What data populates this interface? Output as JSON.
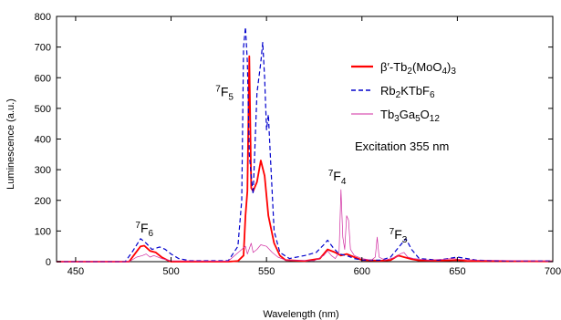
{
  "chart_data": {
    "type": "line",
    "title": "",
    "xlabel": "Wavelength (nm)",
    "ylabel": "Luminescence (a.u.)",
    "xlim": [
      440,
      700
    ],
    "ylim": [
      0,
      800
    ],
    "xticks": [
      450,
      500,
      550,
      600,
      650,
      700
    ],
    "yticks": [
      0,
      100,
      200,
      300,
      400,
      500,
      600,
      700,
      800
    ],
    "grid": false,
    "legend_placement": "top-right",
    "series": [
      {
        "name": "β′-Tb2(MoO4)3",
        "color": "#ff0000",
        "style": "solid",
        "points": [
          [
            440,
            0
          ],
          [
            478,
            0
          ],
          [
            481,
            25
          ],
          [
            484,
            50
          ],
          [
            486,
            52
          ],
          [
            489,
            35
          ],
          [
            492,
            30
          ],
          [
            495,
            15
          ],
          [
            498,
            5
          ],
          [
            500,
            0
          ],
          [
            530,
            0
          ],
          [
            535,
            2
          ],
          [
            538,
            20
          ],
          [
            539,
            150
          ],
          [
            540,
            230
          ],
          [
            541,
            670
          ],
          [
            542,
            240
          ],
          [
            543,
            230
          ],
          [
            545,
            260
          ],
          [
            547,
            330
          ],
          [
            549,
            280
          ],
          [
            551,
            150
          ],
          [
            554,
            60
          ],
          [
            557,
            20
          ],
          [
            560,
            5
          ],
          [
            570,
            2
          ],
          [
            578,
            10
          ],
          [
            582,
            40
          ],
          [
            586,
            30
          ],
          [
            589,
            20
          ],
          [
            592,
            25
          ],
          [
            596,
            15
          ],
          [
            600,
            5
          ],
          [
            610,
            3
          ],
          [
            615,
            5
          ],
          [
            619,
            20
          ],
          [
            622,
            15
          ],
          [
            626,
            8
          ],
          [
            630,
            4
          ],
          [
            640,
            3
          ],
          [
            650,
            5
          ],
          [
            655,
            2
          ],
          [
            700,
            1
          ]
        ]
      },
      {
        "name": "Rb2KTbF6",
        "color": "#0000cc",
        "style": "dashed",
        "points": [
          [
            440,
            0
          ],
          [
            476,
            0
          ],
          [
            480,
            35
          ],
          [
            484,
            75
          ],
          [
            487,
            60
          ],
          [
            490,
            40
          ],
          [
            494,
            48
          ],
          [
            497,
            40
          ],
          [
            500,
            25
          ],
          [
            504,
            10
          ],
          [
            510,
            3
          ],
          [
            530,
            3
          ],
          [
            535,
            50
          ],
          [
            537,
            200
          ],
          [
            538,
            700
          ],
          [
            539,
            765
          ],
          [
            540,
            650
          ],
          [
            541,
            350
          ],
          [
            542,
            280
          ],
          [
            543,
            220
          ],
          [
            545,
            550
          ],
          [
            547,
            650
          ],
          [
            548,
            715
          ],
          [
            549,
            600
          ],
          [
            550,
            430
          ],
          [
            551,
            480
          ],
          [
            552,
            350
          ],
          [
            554,
            100
          ],
          [
            557,
            30
          ],
          [
            562,
            10
          ],
          [
            570,
            20
          ],
          [
            576,
            30
          ],
          [
            580,
            55
          ],
          [
            582,
            70
          ],
          [
            585,
            45
          ],
          [
            588,
            25
          ],
          [
            592,
            20
          ],
          [
            596,
            10
          ],
          [
            600,
            5
          ],
          [
            610,
            5
          ],
          [
            615,
            15
          ],
          [
            619,
            45
          ],
          [
            623,
            75
          ],
          [
            626,
            40
          ],
          [
            630,
            10
          ],
          [
            640,
            5
          ],
          [
            650,
            15
          ],
          [
            655,
            10
          ],
          [
            660,
            5
          ],
          [
            670,
            3
          ],
          [
            700,
            2
          ]
        ]
      },
      {
        "name": "Tb3Ga5O12",
        "color": "#d02aa0",
        "style": "solid",
        "points": [
          [
            440,
            0
          ],
          [
            478,
            0
          ],
          [
            482,
            15
          ],
          [
            485,
            20
          ],
          [
            487,
            25
          ],
          [
            489,
            15
          ],
          [
            491,
            20
          ],
          [
            495,
            10
          ],
          [
            500,
            3
          ],
          [
            530,
            2
          ],
          [
            537,
            40
          ],
          [
            539,
            50
          ],
          [
            540,
            25
          ],
          [
            542,
            60
          ],
          [
            543,
            30
          ],
          [
            545,
            40
          ],
          [
            547,
            55
          ],
          [
            550,
            50
          ],
          [
            553,
            30
          ],
          [
            556,
            15
          ],
          [
            560,
            5
          ],
          [
            575,
            3
          ],
          [
            580,
            20
          ],
          [
            582,
            35
          ],
          [
            584,
            20
          ],
          [
            586,
            10
          ],
          [
            588,
            30
          ],
          [
            589,
            235
          ],
          [
            590,
            80
          ],
          [
            591,
            40
          ],
          [
            592,
            150
          ],
          [
            593,
            135
          ],
          [
            594,
            40
          ],
          [
            596,
            20
          ],
          [
            600,
            10
          ],
          [
            605,
            5
          ],
          [
            607,
            15
          ],
          [
            608,
            80
          ],
          [
            609,
            15
          ],
          [
            612,
            5
          ],
          [
            618,
            15
          ],
          [
            620,
            25
          ],
          [
            622,
            30
          ],
          [
            624,
            15
          ],
          [
            627,
            10
          ],
          [
            635,
            5
          ],
          [
            648,
            10
          ],
          [
            650,
            8
          ],
          [
            660,
            5
          ],
          [
            700,
            2
          ]
        ]
      }
    ],
    "annotations": [
      {
        "id": "7F6",
        "prefix": "7",
        "letter": "F",
        "sub": "6",
        "x": 486,
        "y": 95
      },
      {
        "id": "7F5",
        "prefix": "7",
        "letter": "F",
        "sub": "5",
        "x": 528,
        "y": 540
      },
      {
        "id": "7F4",
        "prefix": "7",
        "letter": "F",
        "sub": "4",
        "x": 587,
        "y": 265
      },
      {
        "id": "7F3",
        "prefix": "7",
        "letter": "F",
        "sub": "3",
        "x": 619,
        "y": 75
      }
    ],
    "legend": {
      "entries": [
        {
          "series": 0,
          "parts": [
            {
              "t": "β′-Tb"
            },
            {
              "t": "2",
              "sub": true
            },
            {
              "t": "(MoO"
            },
            {
              "t": "4",
              "sub": true
            },
            {
              "t": ")"
            },
            {
              "t": "3",
              "sub": true
            }
          ]
        },
        {
          "series": 1,
          "parts": [
            {
              "t": "Rb"
            },
            {
              "t": "2",
              "sub": true
            },
            {
              "t": "KTbF"
            },
            {
              "t": "6",
              "sub": true
            }
          ]
        },
        {
          "series": 2,
          "parts": [
            {
              "t": "Tb"
            },
            {
              "t": "3",
              "sub": true
            },
            {
              "t": "Ga"
            },
            {
              "t": "5",
              "sub": true
            },
            {
              "t": "O"
            },
            {
              "t": "12",
              "sub": true
            }
          ]
        }
      ],
      "note": "Excitation 355 nm"
    }
  }
}
